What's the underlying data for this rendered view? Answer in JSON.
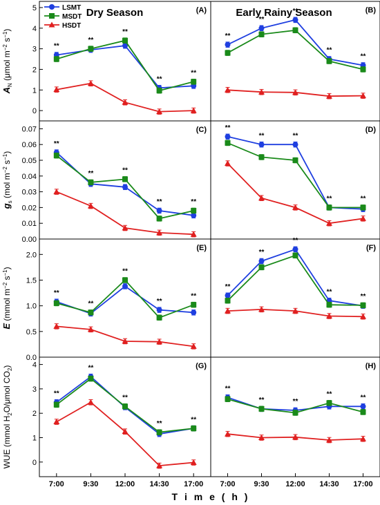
{
  "figure": {
    "seasons": [
      "Dry Season",
      "Early Rainy Season"
    ],
    "xlabel": "T i m e  ( h )",
    "x_ticks": [
      "7:00",
      "9:30",
      "12:00",
      "14:30",
      "17:00"
    ],
    "legend": [
      "LSMT",
      "MSDT",
      "HSDT"
    ],
    "sig_mark": "**",
    "colors": {
      "LSMT": "#1f3fe0",
      "MSDT": "#1a8a1a",
      "HSDT": "#e02020"
    }
  },
  "chart_data": [
    {
      "type": "line",
      "panel": "(A)",
      "season": "Dry Season",
      "ylabel": "A_N (μmol m⁻² s⁻¹)",
      "ylabel_parts": [
        "A",
        "N",
        " (μmol m",
        "−2",
        " s",
        "−1",
        ")"
      ],
      "ylim": [
        -0.5,
        5.3
      ],
      "yticks": [
        0,
        1,
        2,
        3,
        4,
        5
      ],
      "ytick_labels": [
        "0",
        "1",
        "2",
        "3",
        "4",
        "5"
      ],
      "x": [
        "7:00",
        "9:30",
        "12:00",
        "14:30",
        "17:00"
      ],
      "series": [
        {
          "name": "LSMT",
          "values": [
            2.7,
            2.95,
            3.15,
            1.1,
            1.2
          ]
        },
        {
          "name": "MSDT",
          "values": [
            2.5,
            3.0,
            3.4,
            0.97,
            1.4
          ]
        },
        {
          "name": "HSDT",
          "values": [
            1.02,
            1.32,
            0.4,
            -0.05,
            0.0
          ]
        }
      ],
      "significance": [
        true,
        true,
        true,
        true,
        true
      ]
    },
    {
      "type": "line",
      "panel": "(B)",
      "season": "Early Rainy Season",
      "ylim": [
        -0.5,
        5.3
      ],
      "x": [
        "7:00",
        "9:30",
        "12:00",
        "14:30",
        "17:00"
      ],
      "series": [
        {
          "name": "LSMT",
          "values": [
            3.2,
            4.0,
            4.4,
            2.5,
            2.2
          ]
        },
        {
          "name": "MSDT",
          "values": [
            2.8,
            3.7,
            3.9,
            2.4,
            2.0
          ]
        },
        {
          "name": "HSDT",
          "values": [
            1.0,
            0.9,
            0.88,
            0.7,
            0.72
          ]
        }
      ],
      "significance": [
        true,
        true,
        true,
        true,
        true
      ]
    },
    {
      "type": "line",
      "panel": "(C)",
      "season": "Dry Season",
      "ylabel": "g_s (mol m⁻² s⁻¹)",
      "ylabel_parts": [
        "g",
        "s",
        " (mol m",
        "−2",
        " s",
        "−1",
        ")"
      ],
      "ylim": [
        0,
        0.075
      ],
      "yticks": [
        0,
        0.01,
        0.02,
        0.03,
        0.04,
        0.05,
        0.06,
        0.07
      ],
      "ytick_labels": [
        "0.00",
        "0.01",
        "0.02",
        "0.03",
        "0.04",
        "0.05",
        "0.06",
        "0.07"
      ],
      "x": [
        "7:00",
        "9:30",
        "12:00",
        "14:30",
        "17:00"
      ],
      "series": [
        {
          "name": "LSMT",
          "values": [
            0.055,
            0.035,
            0.033,
            0.018,
            0.015
          ]
        },
        {
          "name": "MSDT",
          "values": [
            0.053,
            0.036,
            0.038,
            0.013,
            0.018
          ]
        },
        {
          "name": "HSDT",
          "values": [
            0.03,
            0.021,
            0.007,
            0.004,
            0.003
          ]
        }
      ],
      "significance": [
        true,
        true,
        true,
        true,
        true
      ]
    },
    {
      "type": "line",
      "panel": "(D)",
      "season": "Early Rainy Season",
      "ylim": [
        0,
        0.075
      ],
      "x": [
        "7:00",
        "9:30",
        "12:00",
        "14:30",
        "17:00"
      ],
      "series": [
        {
          "name": "LSMT",
          "values": [
            0.065,
            0.06,
            0.06,
            0.02,
            0.019
          ]
        },
        {
          "name": "MSDT",
          "values": [
            0.061,
            0.052,
            0.05,
            0.02,
            0.02
          ]
        },
        {
          "name": "HSDT",
          "values": [
            0.048,
            0.026,
            0.02,
            0.01,
            0.013
          ]
        }
      ],
      "significance": [
        true,
        true,
        true,
        true,
        true
      ]
    },
    {
      "type": "line",
      "panel": "(E)",
      "season": "Dry Season",
      "ylabel": "E (mmol m⁻² s⁻¹)",
      "ylabel_parts": [
        "E",
        "",
        " (mmol m",
        "−2",
        " s",
        "−1",
        ")"
      ],
      "ylim": [
        0,
        2.3
      ],
      "yticks": [
        0,
        0.5,
        1.0,
        1.5,
        2.0
      ],
      "ytick_labels": [
        "0.0",
        "0.5",
        "1.0",
        "1.5",
        "2.0"
      ],
      "x": [
        "7:00",
        "9:30",
        "12:00",
        "14:30",
        "17:00"
      ],
      "series": [
        {
          "name": "LSMT",
          "values": [
            1.08,
            0.85,
            1.38,
            0.92,
            0.87
          ]
        },
        {
          "name": "MSDT",
          "values": [
            1.05,
            0.87,
            1.5,
            0.77,
            1.02
          ]
        },
        {
          "name": "HSDT",
          "values": [
            0.6,
            0.54,
            0.31,
            0.3,
            0.21
          ]
        }
      ],
      "significance": [
        true,
        true,
        true,
        true,
        true
      ]
    },
    {
      "type": "line",
      "panel": "(F)",
      "season": "Early Rainy Season",
      "ylim": [
        0,
        2.3
      ],
      "x": [
        "7:00",
        "9:30",
        "12:00",
        "14:30",
        "17:00"
      ],
      "series": [
        {
          "name": "LSMT",
          "values": [
            1.2,
            1.87,
            2.1,
            1.1,
            1.0
          ]
        },
        {
          "name": "MSDT",
          "values": [
            1.1,
            1.75,
            1.98,
            1.02,
            1.01
          ]
        },
        {
          "name": "HSDT",
          "values": [
            0.9,
            0.93,
            0.9,
            0.8,
            0.79
          ]
        }
      ],
      "significance": [
        true,
        true,
        true,
        true,
        true
      ]
    },
    {
      "type": "line",
      "panel": "(G)",
      "season": "Dry Season",
      "ylabel": "WUE (mmol H₂O/μmol CO₂)",
      "ylabel_parts": [
        "WUE (mmol H",
        "2",
        "O/μmol CO",
        "2",
        ")"
      ],
      "ylim": [
        -0.6,
        4.3
      ],
      "yticks": [
        0,
        1,
        2,
        3,
        4
      ],
      "ytick_labels": [
        "0",
        "1",
        "2",
        "3",
        "4"
      ],
      "x": [
        "7:00",
        "9:30",
        "12:00",
        "14:30",
        "17:00"
      ],
      "series": [
        {
          "name": "LSMT",
          "values": [
            2.45,
            3.5,
            2.25,
            1.15,
            1.38
          ]
        },
        {
          "name": "MSDT",
          "values": [
            2.35,
            3.42,
            2.28,
            1.22,
            1.38
          ]
        },
        {
          "name": "HSDT",
          "values": [
            1.65,
            2.45,
            1.25,
            -0.15,
            -0.02
          ]
        }
      ],
      "significance": [
        true,
        true,
        true,
        true,
        true
      ]
    },
    {
      "type": "line",
      "panel": "(H)",
      "season": "Early Rainy Season",
      "ylim": [
        -0.6,
        4.3
      ],
      "x": [
        "7:00",
        "9:30",
        "12:00",
        "14:30",
        "17:00"
      ],
      "series": [
        {
          "name": "LSMT",
          "values": [
            2.65,
            2.18,
            2.12,
            2.28,
            2.28
          ]
        },
        {
          "name": "MSDT",
          "values": [
            2.58,
            2.18,
            2.02,
            2.42,
            2.05
          ]
        },
        {
          "name": "HSDT",
          "values": [
            1.15,
            1.0,
            1.02,
            0.9,
            0.95
          ]
        }
      ],
      "significance": [
        true,
        true,
        true,
        true,
        true
      ]
    }
  ]
}
